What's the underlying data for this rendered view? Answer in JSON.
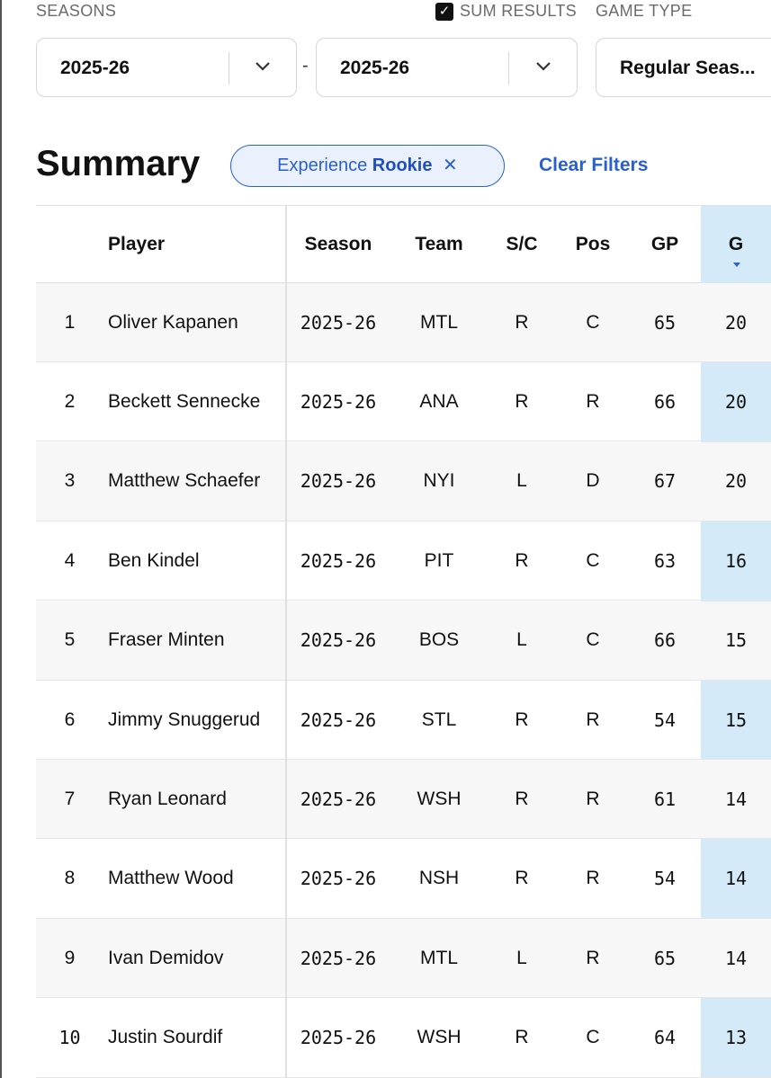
{
  "filters": {
    "seasons_label": "SEASONS",
    "sum_results_label": "SUM RESULTS",
    "sum_results_checked": true,
    "game_type_label": "GAME TYPE",
    "season_from": "2025-26",
    "season_to": "2025-26",
    "range_separator": "-",
    "game_type": "Regular Seas..."
  },
  "summary": {
    "title": "Summary",
    "filter_chip": {
      "name": "Experience",
      "value": "Rookie",
      "remove_symbol": "✕"
    },
    "clear_filters": "Clear Filters"
  },
  "colors": {
    "accent": "#2a5fcf",
    "sorted_column_bg": "#d4eaf9",
    "row_shade": "#f7f7f7"
  },
  "table": {
    "headers": {
      "player": "Player",
      "season": "Season",
      "team": "Team",
      "sc": "S/C",
      "pos": "Pos",
      "gp": "GP",
      "g": "G"
    },
    "sorted_by": "G",
    "sort_direction": "descending",
    "rows": [
      {
        "rank": "1",
        "player": "Oliver Kapanen",
        "season": "2025-26",
        "team": "MTL",
        "sc": "R",
        "pos": "C",
        "gp": "65",
        "g": "20"
      },
      {
        "rank": "2",
        "player": "Beckett Sennecke",
        "season": "2025-26",
        "team": "ANA",
        "sc": "R",
        "pos": "R",
        "gp": "66",
        "g": "20"
      },
      {
        "rank": "3",
        "player": "Matthew Schaefer",
        "season": "2025-26",
        "team": "NYI",
        "sc": "L",
        "pos": "D",
        "gp": "67",
        "g": "20"
      },
      {
        "rank": "4",
        "player": "Ben Kindel",
        "season": "2025-26",
        "team": "PIT",
        "sc": "R",
        "pos": "C",
        "gp": "63",
        "g": "16"
      },
      {
        "rank": "5",
        "player": "Fraser Minten",
        "season": "2025-26",
        "team": "BOS",
        "sc": "L",
        "pos": "C",
        "gp": "66",
        "g": "15"
      },
      {
        "rank": "6",
        "player": "Jimmy Snuggerud",
        "season": "2025-26",
        "team": "STL",
        "sc": "R",
        "pos": "R",
        "gp": "54",
        "g": "15"
      },
      {
        "rank": "7",
        "player": "Ryan Leonard",
        "season": "2025-26",
        "team": "WSH",
        "sc": "R",
        "pos": "R",
        "gp": "61",
        "g": "14"
      },
      {
        "rank": "8",
        "player": "Matthew Wood",
        "season": "2025-26",
        "team": "NSH",
        "sc": "R",
        "pos": "R",
        "gp": "54",
        "g": "14"
      },
      {
        "rank": "9",
        "player": "Ivan Demidov",
        "season": "2025-26",
        "team": "MTL",
        "sc": "L",
        "pos": "R",
        "gp": "65",
        "g": "14"
      },
      {
        "rank": "10",
        "player": "Justin Sourdif",
        "season": "2025-26",
        "team": "WSH",
        "sc": "R",
        "pos": "C",
        "gp": "64",
        "g": "13"
      }
    ]
  }
}
